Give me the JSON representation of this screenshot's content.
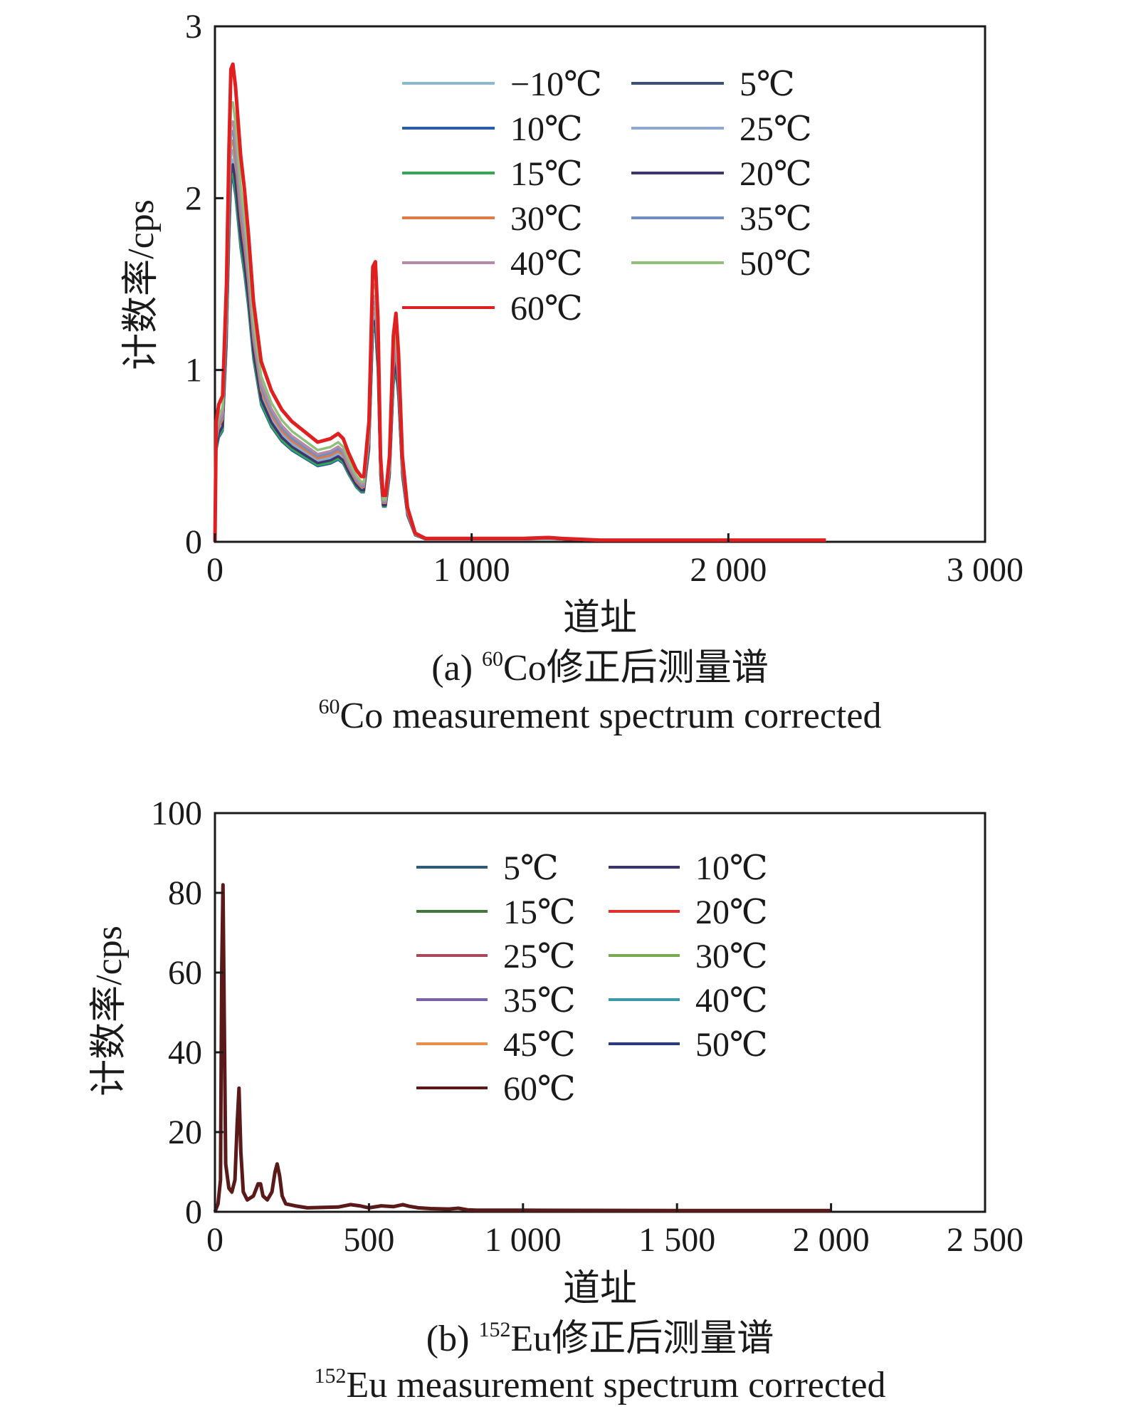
{
  "chart_data": [
    {
      "type": "line",
      "caption_cn": "(a) ⁶⁰Co修正后测量谱",
      "caption_cn_prefix": "(a) ",
      "caption_cn_sup": "60",
      "caption_cn_text": "Co修正后测量谱",
      "caption_en_sup": "60",
      "caption_en_text": "Co measurement spectrum corrected",
      "xlabel": "道址",
      "ylabel": "计数率/cps",
      "xlim": [
        0,
        3000
      ],
      "ylim": [
        0,
        3
      ],
      "xticks": [
        "0",
        "1 000",
        "2 000",
        "3 000"
      ],
      "xtick_values": [
        0,
        1000,
        2000,
        3000
      ],
      "yticks": [
        "0",
        "1",
        "2",
        "3"
      ],
      "ytick_values": [
        0,
        1,
        2,
        3
      ],
      "legend_position": "top-right",
      "series": [
        {
          "name": "−10℃",
          "color": "#8ab8cf",
          "scale": 0.8
        },
        {
          "name": "5℃",
          "color": "#3a4f7a",
          "scale": 0.78
        },
        {
          "name": "10℃",
          "color": "#2a5caa",
          "scale": 0.76
        },
        {
          "name": "25℃",
          "color": "#8fa9cc",
          "scale": 0.82
        },
        {
          "name": "15℃",
          "color": "#33a852",
          "scale": 0.77
        },
        {
          "name": "20℃",
          "color": "#3e3570",
          "scale": 0.79
        },
        {
          "name": "30℃",
          "color": "#e07a44",
          "scale": 0.84
        },
        {
          "name": "35℃",
          "color": "#6f8fc2",
          "scale": 0.86
        },
        {
          "name": "40℃",
          "color": "#b58aa6",
          "scale": 0.88
        },
        {
          "name": "50℃",
          "color": "#8fbf7a",
          "scale": 0.92
        },
        {
          "name": "60℃",
          "color": "#e02020",
          "scale": 1.0
        }
      ],
      "base_curve": {
        "x": [
          0,
          5,
          15,
          30,
          45,
          55,
          62,
          70,
          80,
          90,
          100,
          115,
          130,
          150,
          180,
          220,
          260,
          300,
          350,
          400,
          450,
          480,
          500,
          520,
          550,
          570,
          580,
          600,
          615,
          625,
          635,
          645,
          655,
          665,
          680,
          695,
          705,
          715,
          730,
          750,
          780,
          820,
          900,
          1000,
          1200,
          1300,
          1350,
          1500,
          2000,
          2380
        ],
        "y": [
          0.0,
          0.7,
          0.8,
          0.85,
          1.5,
          2.3,
          2.75,
          2.78,
          2.65,
          2.45,
          2.25,
          2.05,
          1.8,
          1.4,
          1.05,
          0.88,
          0.77,
          0.7,
          0.64,
          0.58,
          0.6,
          0.63,
          0.6,
          0.52,
          0.42,
          0.38,
          0.38,
          0.7,
          1.6,
          1.63,
          1.3,
          0.5,
          0.27,
          0.27,
          0.5,
          1.2,
          1.33,
          1.1,
          0.5,
          0.2,
          0.05,
          0.02,
          0.02,
          0.02,
          0.02,
          0.025,
          0.02,
          0.01,
          0.01,
          0.01
        ]
      }
    },
    {
      "type": "line",
      "caption_cn_prefix": "(b) ",
      "caption_cn_sup": "152",
      "caption_cn_text": "Eu修正后测量谱",
      "caption_en_sup": "152",
      "caption_en_text": "Eu measurement spectrum corrected",
      "xlabel": "道址",
      "ylabel": "计数率/cps",
      "xlim": [
        0,
        2500
      ],
      "ylim": [
        0,
        100
      ],
      "xticks": [
        "0",
        "500",
        "1 000",
        "1 500",
        "2 000",
        "2 500"
      ],
      "xtick_values": [
        0,
        500,
        1000,
        1500,
        2000,
        2500
      ],
      "yticks": [
        "0",
        "20",
        "40",
        "60",
        "80",
        "100"
      ],
      "ytick_values": [
        0,
        20,
        40,
        60,
        80,
        100
      ],
      "legend_position": "top-right",
      "series": [
        {
          "name": "5℃",
          "color": "#2f5a78",
          "scale": 0.96
        },
        {
          "name": "10℃",
          "color": "#3a3768",
          "scale": 0.97
        },
        {
          "name": "15℃",
          "color": "#3f7a3a",
          "scale": 0.95
        },
        {
          "name": "20℃",
          "color": "#e03030",
          "scale": 0.98
        },
        {
          "name": "25℃",
          "color": "#a8485a",
          "scale": 0.96
        },
        {
          "name": "30℃",
          "color": "#7aaa50",
          "scale": 0.97
        },
        {
          "name": "35℃",
          "color": "#7a60a8",
          "scale": 0.95
        },
        {
          "name": "40℃",
          "color": "#3a9aa8",
          "scale": 0.98
        },
        {
          "name": "45℃",
          "color": "#e8904a",
          "scale": 0.96
        },
        {
          "name": "50℃",
          "color": "#2a3a7a",
          "scale": 0.99
        },
        {
          "name": "60℃",
          "color": "#5a1a1a",
          "scale": 1.0
        }
      ],
      "base_curve": {
        "x": [
          0,
          10,
          18,
          22,
          26,
          30,
          35,
          45,
          55,
          65,
          72,
          78,
          84,
          92,
          105,
          125,
          140,
          148,
          156,
          170,
          185,
          195,
          202,
          210,
          218,
          230,
          260,
          300,
          400,
          440,
          470,
          500,
          540,
          580,
          610,
          630,
          660,
          700,
          760,
          790,
          820,
          850,
          1000,
          1500,
          2000
        ],
        "y": [
          0,
          2,
          8,
          60,
          82,
          50,
          12,
          6,
          5,
          8,
          22,
          31,
          15,
          5,
          3,
          4,
          7,
          7,
          4,
          3,
          5,
          10,
          12,
          9,
          4,
          2,
          1.5,
          1,
          1.2,
          1.8,
          1.5,
          1.0,
          1.5,
          1.3,
          1.8,
          1.4,
          1.0,
          0.8,
          0.7,
          0.9,
          0.5,
          0.4,
          0.4,
          0.3,
          0.3
        ]
      }
    }
  ]
}
